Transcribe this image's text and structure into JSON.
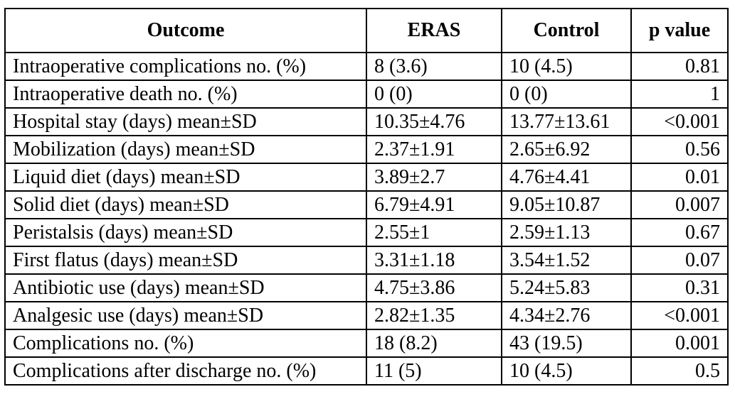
{
  "table": {
    "headers": {
      "outcome": "Outcome",
      "eras": "ERAS",
      "control": "Control",
      "p_value": "p value"
    },
    "rows": [
      {
        "outcome": "Intraoperative complications no. (%)",
        "eras": "8 (3.6)",
        "control": "10 (4.5)",
        "p_value": "0.81"
      },
      {
        "outcome": "Intraoperative death no. (%)",
        "eras": "0 (0)",
        "control": "0 (0)",
        "p_value": "1"
      },
      {
        "outcome": "Hospital stay (days) mean±SD",
        "eras": "10.35±4.76",
        "control": "13.77±13.61",
        "p_value": "<0.001"
      },
      {
        "outcome": "Mobilization (days) mean±SD",
        "eras": "2.37±1.91",
        "control": "2.65±6.92",
        "p_value": "0.56"
      },
      {
        "outcome": "Liquid diet (days) mean±SD",
        "eras": "3.89±2.7",
        "control": "4.76±4.41",
        "p_value": "0.01"
      },
      {
        "outcome": "Solid diet (days) mean±SD",
        "eras": "6.79±4.91",
        "control": "9.05±10.87",
        "p_value": "0.007"
      },
      {
        "outcome": "Peristalsis (days) mean±SD",
        "eras": "2.55±1",
        "control": "2.59±1.13",
        "p_value": "0.67"
      },
      {
        "outcome": "First flatus (days) mean±SD",
        "eras": "3.31±1.18",
        "control": "3.54±1.52",
        "p_value": "0.07"
      },
      {
        "outcome": "Antibiotic use (days) mean±SD",
        "eras": "4.75±3.86",
        "control": "5.24±5.83",
        "p_value": "0.31"
      },
      {
        "outcome": "Analgesic use (days) mean±SD",
        "eras": "2.82±1.35",
        "control": "4.34±2.76",
        "p_value": "<0.001"
      },
      {
        "outcome": "Complications no. (%)",
        "eras": "18 (8.2)",
        "control": "43 (19.5)",
        "p_value": "0.001"
      },
      {
        "outcome": "Complications after discharge no. (%)",
        "eras": "11 (5)",
        "control": "10 (4.5)",
        "p_value": "0.5"
      }
    ]
  }
}
